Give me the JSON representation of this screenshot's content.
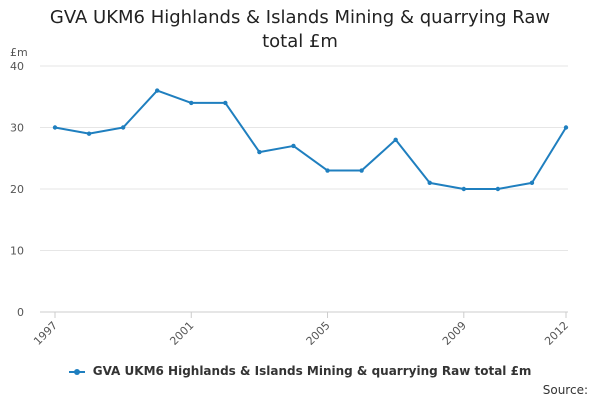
{
  "title_lines": [
    "GVA UKM6 Highlands & Islands Mining & quarrying Raw",
    "total £m"
  ],
  "source_label": "Source:",
  "chart_data": {
    "type": "line",
    "title": "GVA UKM6 Highlands & Islands Mining & quarrying Raw total £m",
    "ylabel": "£m",
    "xlabel": "",
    "ylim": [
      0,
      40
    ],
    "yticks": [
      0,
      10,
      20,
      30,
      40
    ],
    "xtick_labels": [
      "1997",
      "2001",
      "2005",
      "2009",
      "2012"
    ],
    "grid": true,
    "legend_position": "bottom",
    "x": [
      1997,
      1998,
      1999,
      2000,
      2001,
      2002,
      2003,
      2004,
      2005,
      2006,
      2007,
      2008,
      2009,
      2010,
      2011,
      2012
    ],
    "series": [
      {
        "name": "GVA UKM6 Highlands & Islands Mining & quarrying Raw total £m",
        "color": "#1f7fbf",
        "values": [
          30,
          29,
          30,
          36,
          34,
          34,
          26,
          27,
          23,
          23,
          28,
          21,
          20,
          20,
          21,
          30
        ]
      }
    ]
  }
}
